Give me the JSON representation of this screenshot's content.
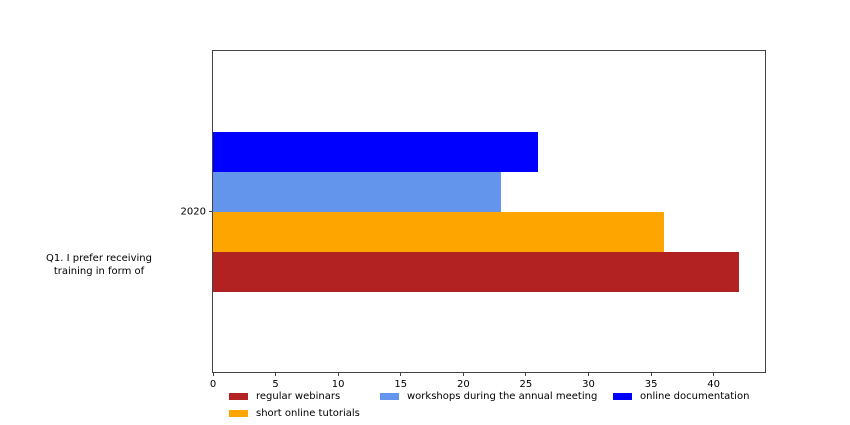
{
  "figure": {
    "background": "#ffffff",
    "annotation": {
      "lines": [
        "Q1. I prefer receiving",
        "training in form of"
      ]
    }
  },
  "chart_data": {
    "type": "bar",
    "orientation": "horizontal",
    "title": "",
    "xlabel": "",
    "ylabel": "",
    "categories": [
      "2020"
    ],
    "series": [
      {
        "name": "regular webinars",
        "values": [
          42
        ],
        "color": "#b22222"
      },
      {
        "name": "short online tutorials",
        "values": [
          36
        ],
        "color": "#ffa500"
      },
      {
        "name": "workshops during the annual meeting",
        "values": [
          23
        ],
        "color": "#6495ed"
      },
      {
        "name": "online documentation",
        "values": [
          26
        ],
        "color": "#0000ff"
      }
    ],
    "xlim": [
      0,
      44.1
    ],
    "xticks": [
      0,
      5,
      10,
      15,
      20,
      25,
      30,
      35,
      40
    ],
    "grid": false,
    "legend_position": "bottom",
    "spine_color": "#444444"
  }
}
